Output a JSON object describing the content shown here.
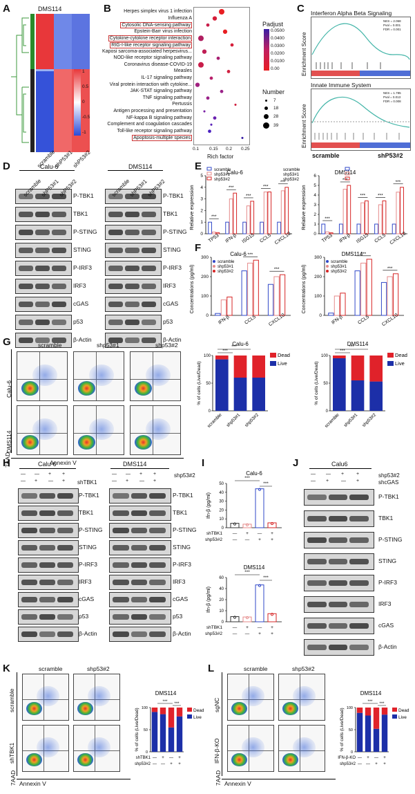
{
  "panels": {
    "A": {
      "label": "A",
      "title": "DMS114",
      "columns": [
        "scramble",
        "shP53#1",
        "shP53#2"
      ],
      "colorbar_ticks": [
        "1",
        "0.5",
        "0",
        "-0.5",
        "-1"
      ],
      "colors": {
        "high": "#e8373a",
        "low": "#2b4bd8",
        "mid": "#ffffff",
        "dendro": "#3c9a3c"
      }
    },
    "B": {
      "label": "B",
      "pathways": [
        "Herpes simplex virus 1 infection",
        "Influenza A",
        "Cytosolic DNA-sensing pathway",
        "Epstein-Barr virus infection",
        "Cytokine-cytokine receptor interaction",
        "RIG-I-like receptor signaling pathway",
        "Kaposi sarcoma-associated herpesvirus...",
        "NOD-like receptor signaling pathway",
        "Coronavirus disease-COVID-19",
        "Measles",
        "IL-17 signaling pathway",
        "Viral protein interaction with cytokine...",
        "JAK-STAT signaling pathway",
        "TNF signaling pathway",
        "Pertussis",
        "Antigen processing and presentation",
        "NF-kappa B signaling pathway",
        "Complement and coagulation cascades",
        "Toll-like receptor signaling pathway",
        "Apoptosis-multiple species"
      ],
      "boxed": [
        2,
        4,
        5,
        19
      ],
      "padj_title": "Padjust",
      "padj_ticks": [
        "0.0500",
        "0.0400",
        "0.0300",
        "0.0200",
        "0.0100",
        "0.00"
      ],
      "number_title": "Number",
      "number_ticks": [
        "7",
        "18",
        "28",
        "39"
      ],
      "xlabel": "Rich factor",
      "xticks": [
        "0.1",
        "0.15",
        "0.2",
        "0.25"
      ]
    },
    "C": {
      "label": "C",
      "plots": [
        {
          "title": "Interferon Alpha Beta Signaling",
          "stats": [
            "NES = 2.068",
            "Pval = 0.001",
            "FDR = 0.001"
          ]
        },
        {
          "title": "Innate Immune System",
          "stats": [
            "NES = 1.785",
            "Pval = 0.013",
            "FDR = 0.008"
          ]
        }
      ],
      "ylabel": "Enrichment Score",
      "xleft": "scramble",
      "xright": "shP53#2"
    },
    "D": {
      "label": "D",
      "groups": [
        {
          "title": "Calu-6",
          "lanes": [
            "scramble",
            "shP53#1",
            "shP53#2"
          ]
        },
        {
          "title": "DMS114",
          "lanes": [
            "scramble",
            "shP53#1",
            "shP53#2"
          ]
        }
      ],
      "proteins": [
        "P-TBK1",
        "TBK1",
        "P-STING",
        "STING",
        "P-IRF3",
        "IRF3",
        "cGAS",
        "p53",
        "β-Actin"
      ]
    },
    "E": {
      "label": "E",
      "ylabel": "Relative expression",
      "legend": [
        "scramble",
        "shp53#1",
        "shp53#2"
      ],
      "sig": "***",
      "colors": {
        "scramble": "#2f47c8",
        "sh1": "#e58a8a",
        "sh2": "#d62424"
      },
      "charts": [
        {
          "title": "Calu-6",
          "categories": [
            "TP53",
            "IFN-β",
            "ISG15",
            "CCL5",
            "CXCL10"
          ],
          "yticks": [
            "0",
            "1",
            "2",
            "3",
            "4",
            "5"
          ]
        },
        {
          "title": "DMS114",
          "categories": [
            "TP53",
            "IFN-β",
            "ISG15",
            "CCL5",
            "CXCL10"
          ],
          "yticks": [
            "0",
            "1",
            "2",
            "3",
            "4",
            "5",
            "6"
          ]
        }
      ]
    },
    "F": {
      "label": "F",
      "ylabel": "Concentrations (pg/ml)",
      "legend": [
        "scramble",
        "shp53#1",
        "shp53#2"
      ],
      "charts": [
        {
          "title": "Calu-6",
          "categories": [
            "IFN-β",
            "CCL5",
            "CXCL10"
          ],
          "yticks": [
            "0",
            "100",
            "200",
            "300"
          ]
        },
        {
          "title": "DMS114",
          "categories": [
            "IFN-β",
            "CCL5",
            "CXCL10"
          ],
          "yticks": [
            "0",
            "100",
            "200",
            "300"
          ]
        }
      ]
    },
    "G": {
      "label": "G",
      "columns": [
        "scramble",
        "shp53#1",
        "shp53#2"
      ],
      "rows": [
        "Calu-6",
        "DMS114"
      ],
      "yaxis": "7AAD",
      "xaxis": "Annexin V",
      "ylabel": "% of cells (Live/Dead)",
      "legend": [
        "Dead",
        "Live"
      ],
      "charts": [
        {
          "title": "Calu-6",
          "categories": [
            "scramble",
            "shp53#1",
            "shp53#2"
          ],
          "yticks": [
            "0",
            "50",
            "100"
          ]
        },
        {
          "title": "DMS114",
          "categories": [
            "scramble",
            "shp53#1",
            "shp53#2"
          ],
          "yticks": [
            "0",
            "50",
            "100"
          ]
        }
      ]
    },
    "H": {
      "label": "H",
      "groups": [
        {
          "title": "Calu-6"
        },
        {
          "title": "DMS114"
        }
      ],
      "row1": "shp53#2",
      "row2": "shTBK1",
      "signs1": [
        "—",
        "—",
        "+",
        "+"
      ],
      "signs2": [
        "—",
        "+",
        "—",
        "+"
      ],
      "proteins": [
        "P-TBK1",
        "TBK1",
        "P-STING",
        "STING",
        "P-IRF3",
        "IRF3",
        "cGAS",
        "p53",
        "β-Actin"
      ]
    },
    "I": {
      "label": "I",
      "ylabel": "Ifn-β (pg/ml)",
      "rows": [
        "shTBK1",
        "shp53#2"
      ],
      "signs1": [
        "—",
        "+",
        "—",
        "+"
      ],
      "signs2": [
        "—",
        "—",
        "+",
        "+"
      ],
      "charts": [
        {
          "title": "Calu-6",
          "yticks": [
            "0",
            "10",
            "20",
            "30",
            "40",
            "50"
          ]
        },
        {
          "title": "DMS114",
          "yticks": [
            "0",
            "10",
            "20",
            "40",
            "60"
          ]
        }
      ]
    },
    "J": {
      "label": "J",
      "title": "Calu6",
      "row1": "shp53#2",
      "row2": "shcGAS",
      "signs1": [
        "—",
        "—",
        "+",
        "+"
      ],
      "signs2": [
        "—",
        "+",
        "—",
        "+"
      ],
      "proteins": [
        "P-TBK1",
        "TBK1",
        "P-STING",
        "STING",
        "P-IRF3",
        "IRF3",
        "cGAS",
        "β-Actin"
      ]
    },
    "K": {
      "label": "K",
      "columns": [
        "scramble",
        "shp53#2"
      ],
      "rows": [
        "scramble",
        "shTBK1"
      ],
      "yaxis": "7AAD",
      "xaxis": "Annexin V",
      "chart_title": "DMS114",
      "ylabel": "% of cells (Live/Dead)",
      "legend": [
        "Dead",
        "Live"
      ],
      "cond1": "shTBK1",
      "cond2": "shp53#2",
      "signs1": [
        "—",
        "+",
        "—",
        "+"
      ],
      "signs2": [
        "—",
        "—",
        "+",
        "+"
      ]
    },
    "L": {
      "label": "L",
      "columns": [
        "scramble",
        "shp53#2"
      ],
      "rows": [
        "sgNC",
        "IFN-β-KO"
      ],
      "yaxis": "7AAD",
      "xaxis": "Annexin V",
      "chart_title": "DMS114",
      "ylabel": "% of cells (Live/Dead)",
      "legend": [
        "Dead",
        "Live"
      ],
      "cond1": "IFN-β-KO",
      "cond2": "shp53#2",
      "signs1": [
        "—",
        "+",
        "—",
        "+"
      ],
      "signs2": [
        "—",
        "—",
        "+",
        "+"
      ]
    }
  },
  "chart_data": [
    {
      "type": "bar",
      "title": "Calu-6",
      "ylabel": "Relative expression",
      "categories": [
        "TP53",
        "IFN-β",
        "ISG15",
        "CCL5",
        "CXCL10"
      ],
      "ylim": [
        0,
        5
      ],
      "series": [
        {
          "name": "scramble",
          "values": [
            1,
            1,
            1,
            1,
            1
          ]
        },
        {
          "name": "shp53#1",
          "values": [
            0.15,
            3.0,
            2.4,
            3.6,
            3.7
          ]
        },
        {
          "name": "shp53#2",
          "values": [
            0.1,
            3.5,
            2.8,
            3.6,
            4.0
          ]
        }
      ]
    },
    {
      "type": "bar",
      "title": "DMS114",
      "ylabel": "Relative expression",
      "categories": [
        "TP53",
        "IFN-β",
        "ISG15",
        "CCL5",
        "CXCL10"
      ],
      "ylim": [
        0,
        6
      ],
      "series": [
        {
          "name": "scramble",
          "values": [
            1,
            1,
            1,
            1,
            1
          ]
        },
        {
          "name": "shp53#1",
          "values": [
            0.2,
            4.6,
            3.2,
            3.0,
            4.3
          ]
        },
        {
          "name": "shp53#2",
          "values": [
            0.1,
            5.0,
            3.4,
            3.4,
            4.8
          ]
        }
      ]
    },
    {
      "type": "bar",
      "title": "Calu-6",
      "ylabel": "Concentrations (pg/ml)",
      "categories": [
        "IFN-β",
        "CCL5",
        "CXCL10"
      ],
      "ylim": [
        0,
        300
      ],
      "series": [
        {
          "name": "scramble",
          "values": [
            10,
            230,
            160
          ]
        },
        {
          "name": "shp53#1",
          "values": [
            80,
            270,
            200
          ]
        },
        {
          "name": "shp53#2",
          "values": [
            95,
            285,
            210
          ]
        }
      ]
    },
    {
      "type": "bar",
      "title": "DMS114",
      "ylabel": "Concentrations (pg/ml)",
      "categories": [
        "IFN-β",
        "CCL5",
        "CXCL10"
      ],
      "ylim": [
        0,
        300
      ],
      "series": [
        {
          "name": "scramble",
          "values": [
            12,
            230,
            170
          ]
        },
        {
          "name": "shp53#1",
          "values": [
            100,
            270,
            200
          ]
        },
        {
          "name": "shp53#2",
          "values": [
            115,
            290,
            215
          ]
        }
      ]
    },
    {
      "type": "bar",
      "title": "Calu-6",
      "ylabel": "% of cells (Live/Dead)",
      "categories": [
        "scramble",
        "shp53#1",
        "shp53#2"
      ],
      "ylim": [
        0,
        100
      ],
      "series": [
        {
          "name": "Live",
          "values": [
            93,
            60,
            60
          ]
        },
        {
          "name": "Dead",
          "values": [
            7,
            40,
            40
          ]
        }
      ]
    },
    {
      "type": "bar",
      "title": "DMS114",
      "ylabel": "% of cells (Live/Dead)",
      "categories": [
        "scramble",
        "shp53#1",
        "shp53#2"
      ],
      "ylim": [
        0,
        100
      ],
      "series": [
        {
          "name": "Live",
          "values": [
            95,
            55,
            53
          ]
        },
        {
          "name": "Dead",
          "values": [
            5,
            45,
            47
          ]
        }
      ]
    },
    {
      "type": "bar",
      "title": "Calu-6",
      "ylabel": "Ifn-β (pg/ml)",
      "categories": [
        "1",
        "2",
        "3",
        "4"
      ],
      "ylim": [
        0,
        50
      ],
      "series": [
        {
          "values": [
            5,
            4,
            44,
            5.5
          ]
        }
      ]
    },
    {
      "type": "bar",
      "title": "DMS114",
      "ylabel": "Ifn-β (pg/ml)",
      "categories": [
        "1",
        "2",
        "3",
        "4"
      ],
      "ylim": [
        0,
        60
      ],
      "series": [
        {
          "values": [
            7,
            6.5,
            50,
            11
          ]
        }
      ]
    },
    {
      "type": "bar",
      "title": "DMS114",
      "ylabel": "% of cells (Live/Dead)",
      "categories": [
        "1",
        "2",
        "3",
        "4"
      ],
      "ylim": [
        0,
        100
      ],
      "series": [
        {
          "name": "Live",
          "values": [
            90,
            85,
            55,
            80
          ]
        },
        {
          "name": "Dead",
          "values": [
            10,
            15,
            45,
            20
          ]
        }
      ]
    },
    {
      "type": "bar",
      "title": "DMS114",
      "ylabel": "% of cells (Live/Dead)",
      "categories": [
        "1",
        "2",
        "3",
        "4"
      ],
      "ylim": [
        0,
        100
      ],
      "series": [
        {
          "name": "Live",
          "values": [
            88,
            82,
            52,
            84
          ]
        },
        {
          "name": "Dead",
          "values": [
            12,
            18,
            48,
            16
          ]
        }
      ]
    }
  ]
}
